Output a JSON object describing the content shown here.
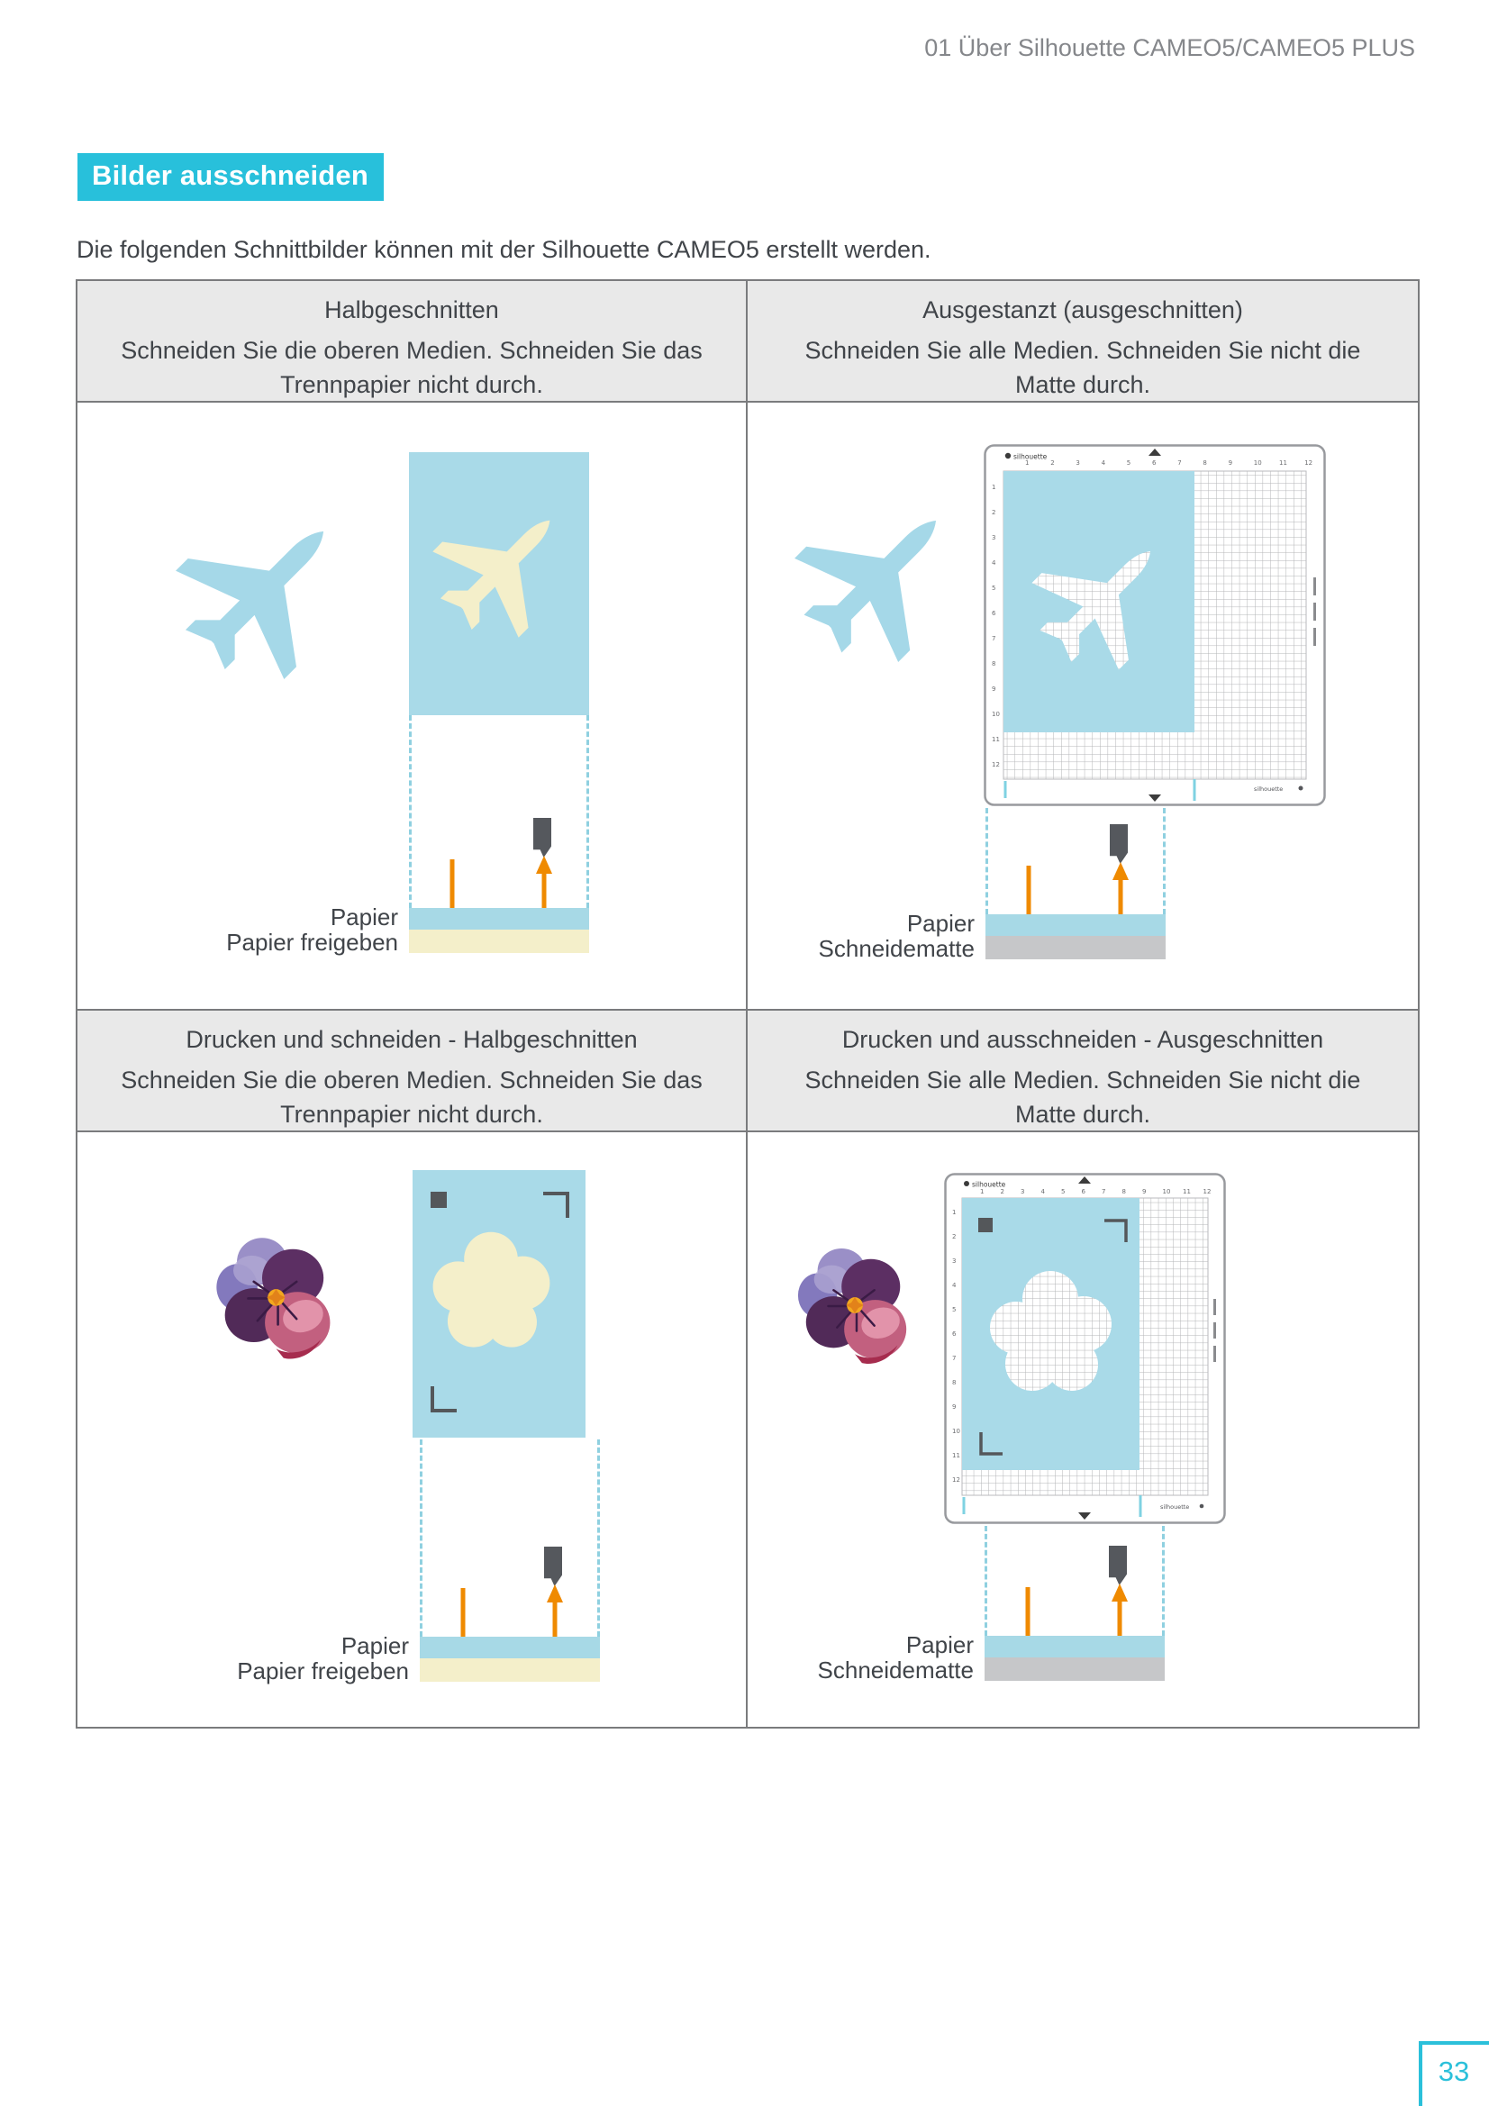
{
  "page": {
    "header": "01 Über Silhouette CAMEO5/CAMEO5 PLUS",
    "title": "Bilder ausschneiden",
    "intro": "Die folgenden Schnittbilder können mit der Silhouette CAMEO5 erstellt werden.",
    "page_number": "33"
  },
  "mat": {
    "logo": "silhouette",
    "ruler_numbers": [
      "1",
      "2",
      "3",
      "4",
      "5",
      "6",
      "7",
      "8",
      "9",
      "10",
      "11",
      "12"
    ]
  },
  "colors": {
    "accent_cyan": "#28C0DB",
    "paper_blue": "#A9DAE8",
    "cream": "#F4EFCA",
    "mat_gray": "#C6C7C9",
    "cut_orange": "#EF8A00",
    "blade_gray": "#55585D",
    "header_cell_bg": "#E9E9E9",
    "table_border": "#7A7B7D"
  },
  "table": {
    "cells": [
      {
        "title": "Halbgeschnitten",
        "desc": "Schneiden Sie die oberen Medien. Schneiden Sie das Trennpapier nicht durch.",
        "layer_top": "Papier",
        "layer_bottom": "Papier freigeben"
      },
      {
        "title": "Ausgestanzt (ausgeschnitten)",
        "desc": "Schneiden Sie alle Medien. Schneiden Sie nicht die Matte durch.",
        "layer_top": "Papier",
        "layer_bottom": "Schneidematte"
      },
      {
        "title": "Drucken und schneiden - Halbgeschnitten",
        "desc": "Schneiden Sie die oberen Medien. Schneiden Sie das Trennpapier nicht durch.",
        "layer_top": "Papier",
        "layer_bottom": "Papier freigeben"
      },
      {
        "title": "Drucken und ausschneiden - Ausgeschnitten",
        "desc": "Schneiden Sie alle Medien. Schneiden Sie nicht die Matte durch.",
        "layer_top": "Papier",
        "layer_bottom": "Schneidematte"
      }
    ]
  }
}
